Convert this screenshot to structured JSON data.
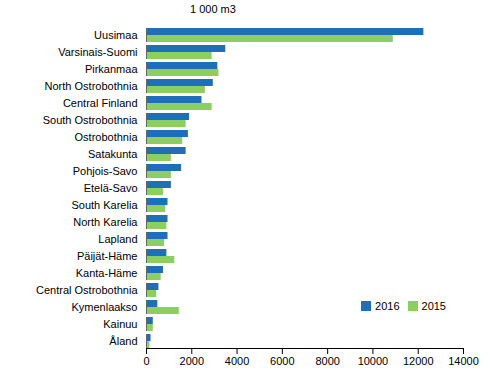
{
  "chart_data": {
    "type": "bar",
    "orientation": "horizontal",
    "title": "1 000 m3",
    "categories": [
      "Uusimaa",
      "Varsinais-Suomi",
      "Pirkanmaa",
      "North Ostrobothnia",
      "Central Finland",
      "South Ostrobothnia",
      "Ostrobothnia",
      "Satakunta",
      "Pohjois-Savo",
      "Etelä-Savo",
      "South Karelia",
      "North Karelia",
      "Lapland",
      "Päijät-Häme",
      "Kanta-Häme",
      "Central Ostrobothnia",
      "Kymenlaakso",
      "Kainuu",
      "Åland"
    ],
    "series": [
      {
        "name": "2016",
        "color": "#1f6fb8",
        "values": [
          12250,
          3500,
          3150,
          2950,
          2450,
          1900,
          1850,
          1750,
          1550,
          1100,
          950,
          950,
          950,
          900,
          750,
          550,
          500,
          300,
          200
        ]
      },
      {
        "name": "2015",
        "color": "#8ccf5f",
        "values": [
          10900,
          2900,
          3200,
          2600,
          2900,
          1750,
          1600,
          1100,
          1100,
          750,
          850,
          900,
          800,
          1250,
          650,
          450,
          1450,
          300,
          150
        ]
      }
    ],
    "xlim": [
      0,
      14000
    ],
    "xticks": [
      0,
      2000,
      4000,
      6000,
      8000,
      10000,
      12000,
      14000
    ],
    "grid": false,
    "legend": "bottom-right"
  }
}
